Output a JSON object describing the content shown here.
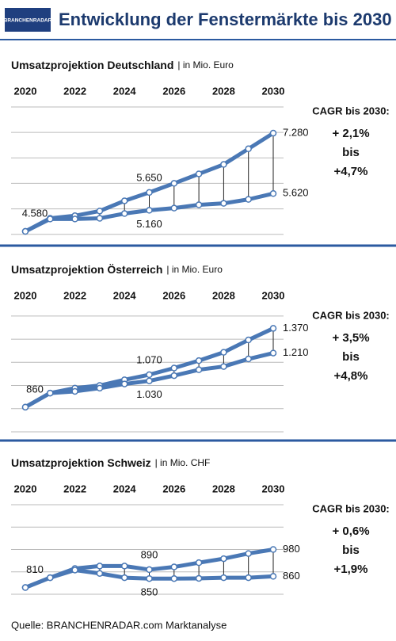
{
  "header": {
    "logo": "BRANCHENRADAR",
    "title": "Entwicklung der Fenstermärkte bis 2030"
  },
  "chart_data": [
    {
      "type": "line",
      "title": "Umsatzprojektion Deutschland",
      "subtitle": "| in Mio. Euro",
      "x": [
        2020,
        2021,
        2022,
        2023,
        2024,
        2025,
        2026,
        2027,
        2028,
        2029,
        2030
      ],
      "xlim": [
        2020,
        2030
      ],
      "xticks": [
        2020,
        2022,
        2024,
        2026,
        2028,
        2030
      ],
      "ylim": [
        4450,
        8000
      ],
      "yticks": [
        4500,
        5200,
        5900,
        6600,
        7300,
        8000
      ],
      "grid": true,
      "series": [
        {
          "color": "#4a78b5",
          "values": [
            4580,
            4940,
            5010,
            5140,
            5420,
            5650,
            5900,
            6160,
            6420,
            6850,
            7280
          ],
          "value_labels": [
            "4.580",
            null,
            null,
            null,
            null,
            "5.650",
            null,
            null,
            null,
            null,
            "7.280"
          ]
        },
        {
          "color": "#4a78b5",
          "values": [
            4580,
            4920,
            4920,
            4940,
            5070,
            5160,
            5220,
            5310,
            5350,
            5460,
            5620
          ],
          "value_labels": [
            null,
            null,
            null,
            null,
            null,
            "5.160",
            null,
            null,
            null,
            null,
            "5.620"
          ]
        }
      ],
      "cagr_title": "CAGR bis 2030:",
      "cagr_lines": [
        "+ 2,1%",
        "bis",
        "+4,7%"
      ]
    },
    {
      "type": "line",
      "title": "Umsatzprojektion Österreich",
      "subtitle": "| in Mio. Euro",
      "x": [
        2020,
        2021,
        2022,
        2023,
        2024,
        2025,
        2026,
        2027,
        2028,
        2029,
        2030
      ],
      "xlim": [
        2020,
        2030
      ],
      "xticks": [
        2020,
        2022,
        2024,
        2026,
        2028,
        2030
      ],
      "ylim": [
        700,
        1480
      ],
      "yticks": [
        700,
        850,
        1000,
        1150,
        1300,
        1450
      ],
      "grid": true,
      "series": [
        {
          "color": "#4a78b5",
          "values": [
            860,
            951,
            983,
            1000,
            1037,
            1070,
            1113,
            1161,
            1215,
            1295,
            1370
          ],
          "value_labels": [
            "860",
            null,
            null,
            null,
            null,
            "1.070",
            null,
            null,
            null,
            null,
            "1.370"
          ]
        },
        {
          "color": "#4a78b5",
          "values": [
            860,
            951,
            962,
            983,
            1010,
            1030,
            1064,
            1102,
            1123,
            1172,
            1210
          ],
          "value_labels": [
            null,
            null,
            null,
            null,
            null,
            "1.030",
            null,
            null,
            null,
            null,
            "1.210"
          ]
        }
      ],
      "cagr_title": "CAGR bis 2030:",
      "cagr_lines": [
        "+ 3,5%",
        "bis",
        "+4,8%"
      ]
    },
    {
      "type": "line",
      "title": "Umsatzprojektion Schweiz",
      "subtitle": "| in Mio. CHF",
      "x": [
        2020,
        2021,
        2022,
        2023,
        2024,
        2025,
        2026,
        2027,
        2028,
        2029,
        2030
      ],
      "xlim": [
        2020,
        2030
      ],
      "xticks": [
        2020,
        2022,
        2024,
        2026,
        2028,
        2030
      ],
      "ylim": [
        780,
        1180
      ],
      "yticks": [
        780,
        880,
        980,
        1080,
        1180
      ],
      "grid": true,
      "series": [
        {
          "color": "#4a78b5",
          "values": [
            810,
            854,
            895,
            906,
            906,
            890,
            902,
            921,
            939,
            962,
            980
          ],
          "value_labels": [
            "810",
            null,
            null,
            null,
            null,
            "890",
            null,
            null,
            null,
            null,
            "980"
          ]
        },
        {
          "color": "#4a78b5",
          "values": [
            810,
            854,
            888,
            873,
            854,
            850,
            850,
            851,
            854,
            854,
            860
          ],
          "value_labels": [
            null,
            null,
            null,
            null,
            null,
            "850",
            null,
            null,
            null,
            null,
            "860"
          ]
        }
      ],
      "cagr_title": "CAGR bis 2030:",
      "cagr_lines": [
        "+ 0,6%",
        "bis",
        "+1,9%"
      ]
    }
  ],
  "footer": {
    "source": "Quelle: BRANCHENRADAR.com Marktanalyse"
  }
}
